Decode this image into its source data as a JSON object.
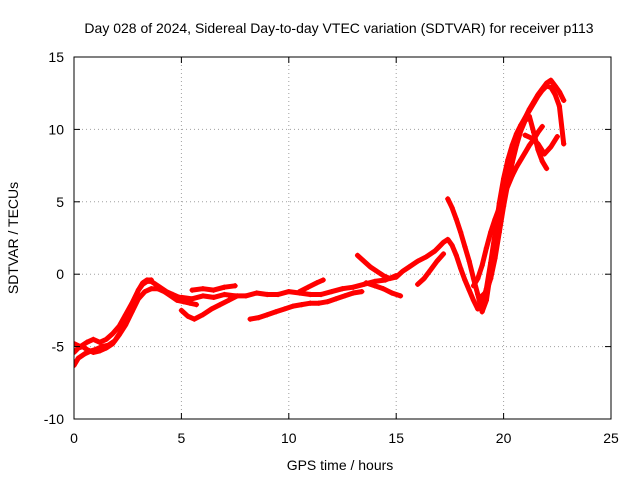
{
  "chart_data": {
    "type": "scatter",
    "title": "Day 028 of 2024, Sidereal Day-to-day VTEC variation (SDTVAR) for receiver p113",
    "xlabel": "GPS time / hours",
    "ylabel": "SDTVAR / TECUs",
    "xlim": [
      0,
      25
    ],
    "ylim": [
      -10,
      15
    ],
    "xticks": [
      "0",
      "5",
      "10",
      "15",
      "20",
      "25"
    ],
    "yticks": [
      "-10",
      "-5",
      "0",
      "5",
      "10",
      "15"
    ],
    "grid": true,
    "marker": "+",
    "color": "#ff0000",
    "series": [
      {
        "x": [
          0.0,
          0.2,
          0.5,
          0.8,
          1.0,
          1.3,
          1.6,
          1.9,
          2.2,
          2.5,
          2.8,
          3.0,
          3.2,
          3.4,
          3.6,
          3.8,
          4.0,
          4.3,
          4.6,
          4.9,
          5.2
        ],
        "y": [
          -6.3,
          -5.8,
          -5.5,
          -5.3,
          -5.2,
          -5.0,
          -4.9,
          -4.6,
          -3.9,
          -3.0,
          -1.9,
          -1.1,
          -0.7,
          -0.5,
          -0.5,
          -0.7,
          -0.9,
          -1.2,
          -1.4,
          -1.6,
          -1.7
        ]
      },
      {
        "x": [
          0.0,
          0.2,
          0.4,
          0.6,
          0.9,
          1.2,
          1.5,
          1.8,
          2.1,
          2.4,
          2.7,
          3.0,
          3.3,
          3.6,
          3.9,
          4.2,
          4.5,
          4.8,
          5.1,
          5.4,
          5.7
        ],
        "y": [
          -5.4,
          -5.1,
          -5.0,
          -5.2,
          -5.4,
          -5.3,
          -5.1,
          -4.8,
          -4.2,
          -3.5,
          -2.6,
          -1.7,
          -1.2,
          -1.0,
          -1.0,
          -1.2,
          -1.5,
          -1.8,
          -1.9,
          -2.0,
          -2.1
        ]
      },
      {
        "x": [
          0.0,
          0.3,
          0.6,
          0.9,
          1.2,
          1.5,
          1.8,
          2.1,
          2.4,
          2.7,
          3.0,
          3.2,
          3.4,
          3.6
        ],
        "y": [
          -4.8,
          -5.0,
          -4.7,
          -4.5,
          -4.7,
          -4.5,
          -4.1,
          -3.6,
          -2.8,
          -2.0,
          -1.1,
          -0.6,
          -0.4,
          -0.4
        ]
      },
      {
        "x": [
          5.0,
          5.5,
          6.0,
          6.5,
          7.0,
          7.5,
          8.0,
          8.5,
          9.0,
          9.5,
          10.0,
          10.5,
          11.0,
          11.5,
          12.0,
          12.5,
          13.0,
          13.5,
          14.0,
          14.5,
          15.0
        ],
        "y": [
          -1.6,
          -1.7,
          -1.5,
          -1.6,
          -1.4,
          -1.5,
          -1.5,
          -1.3,
          -1.4,
          -1.4,
          -1.2,
          -1.3,
          -1.4,
          -1.4,
          -1.2,
          -1.0,
          -0.9,
          -0.7,
          -0.5,
          -0.4,
          -0.1
        ]
      },
      {
        "x": [
          5.0,
          5.3,
          5.6,
          6.0,
          6.4,
          6.8,
          7.2,
          7.6
        ],
        "y": [
          -2.5,
          -2.9,
          -3.1,
          -2.8,
          -2.4,
          -2.1,
          -1.8,
          -1.5
        ]
      },
      {
        "x": [
          5.5,
          6.0,
          6.5,
          7.0,
          7.5
        ],
        "y": [
          -1.1,
          -1.0,
          -1.1,
          -0.9,
          -0.8
        ]
      },
      {
        "x": [
          8.2,
          8.6,
          9.0,
          9.4,
          9.8,
          10.2,
          10.6,
          11.0,
          11.4,
          11.8,
          12.2,
          12.6,
          13.0,
          13.4
        ],
        "y": [
          -3.1,
          -3.0,
          -2.8,
          -2.6,
          -2.4,
          -2.2,
          -2.1,
          -2.0,
          -2.0,
          -1.9,
          -1.7,
          -1.5,
          -1.3,
          -1.2
        ]
      },
      {
        "x": [
          10.5,
          10.9,
          11.3,
          11.6
        ],
        "y": [
          -1.2,
          -0.9,
          -0.6,
          -0.4
        ]
      },
      {
        "x": [
          13.2,
          13.5,
          13.8,
          14.1,
          14.4,
          14.7,
          15.0,
          15.3,
          15.6,
          16.0,
          16.4,
          16.8,
          17.0,
          17.2,
          17.4,
          17.6,
          17.8,
          18.0,
          18.2,
          18.4,
          18.6,
          18.8,
          19.0,
          19.2,
          19.4,
          19.6,
          19.8,
          20.0,
          20.2,
          20.4,
          20.6,
          20.8,
          21.0,
          21.2,
          21.4,
          21.6,
          21.8,
          22.0,
          22.2,
          22.4,
          22.6,
          22.8
        ],
        "y": [
          1.3,
          0.9,
          0.5,
          0.2,
          -0.1,
          -0.3,
          -0.2,
          0.2,
          0.5,
          0.9,
          1.2,
          1.6,
          1.9,
          2.2,
          2.4,
          2.0,
          1.3,
          0.4,
          -0.4,
          -1.1,
          -1.8,
          -2.4,
          -2.0,
          -1.0,
          0.8,
          2.8,
          4.9,
          6.6,
          7.9,
          8.9,
          9.7,
          10.3,
          10.8,
          11.4,
          11.9,
          12.4,
          12.8,
          13.2,
          13.4,
          13.0,
          12.6,
          12.0
        ]
      },
      {
        "x": [
          13.6,
          14.0,
          14.4,
          14.8,
          15.2
        ],
        "y": [
          -0.6,
          -0.8,
          -1.0,
          -1.3,
          -1.5
        ]
      },
      {
        "x": [
          17.4,
          17.6,
          17.8,
          18.0,
          18.2,
          18.4,
          18.6,
          18.8,
          19.0,
          19.2,
          19.4,
          19.6,
          19.8,
          20.0,
          20.2,
          20.4,
          20.6,
          20.8,
          21.0,
          21.2,
          21.4,
          21.6,
          21.8,
          22.0,
          22.2,
          22.4,
          22.6,
          22.8
        ],
        "y": [
          5.2,
          4.6,
          3.8,
          2.9,
          1.9,
          0.9,
          -0.3,
          -1.4,
          -2.6,
          -1.8,
          0.2,
          2.4,
          4.3,
          6.0,
          7.4,
          8.6,
          9.5,
          10.2,
          10.8,
          11.3,
          11.8,
          12.3,
          12.7,
          13.0,
          12.9,
          12.4,
          11.6,
          9.0
        ]
      },
      {
        "x": [
          18.6,
          18.8,
          19.0,
          19.2,
          19.4,
          19.6,
          19.8,
          20.0,
          20.2,
          20.4,
          20.6,
          20.8,
          21.0,
          21.2,
          21.4,
          21.6,
          21.8
        ],
        "y": [
          -0.8,
          -0.3,
          0.6,
          1.8,
          2.9,
          3.8,
          4.6,
          5.4,
          6.1,
          6.8,
          7.4,
          7.9,
          8.4,
          8.9,
          9.3,
          9.8,
          10.2
        ]
      },
      {
        "x": [
          19.0,
          19.2,
          19.4,
          19.6,
          19.8,
          20.0,
          20.2,
          20.4,
          20.6,
          20.8,
          21.0,
          21.2,
          21.4,
          21.6,
          21.8,
          22.0
        ],
        "y": [
          -1.5,
          -1.2,
          -0.3,
          1.1,
          2.9,
          4.7,
          6.3,
          7.7,
          8.9,
          9.9,
          10.6,
          10.9,
          9.8,
          8.6,
          7.8,
          7.3
        ]
      },
      {
        "x": [
          21.0,
          21.3,
          21.6,
          21.9,
          22.2,
          22.5
        ],
        "y": [
          9.6,
          9.4,
          9.0,
          8.3,
          8.8,
          9.5
        ]
      },
      {
        "x": [
          16.0,
          16.3,
          16.6,
          16.9,
          17.2
        ],
        "y": [
          -0.7,
          -0.3,
          0.3,
          0.9,
          1.4
        ]
      }
    ]
  }
}
